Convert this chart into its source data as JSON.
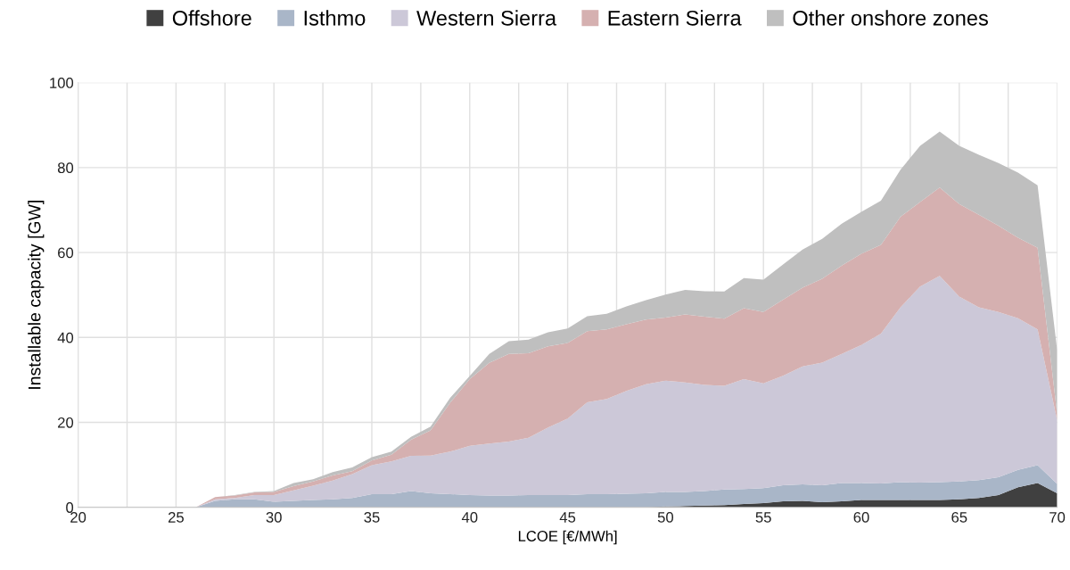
{
  "chart_data": {
    "type": "area",
    "stacked": true,
    "xlabel": "LCOE [€/MWh]",
    "ylabel": "Installable capacity [GW]",
    "x": [
      20,
      21,
      22,
      23,
      24,
      25,
      26,
      27,
      28,
      29,
      30,
      31,
      32,
      33,
      34,
      35,
      36,
      37,
      38,
      39,
      40,
      41,
      42,
      43,
      44,
      45,
      46,
      47,
      48,
      49,
      50,
      51,
      52,
      53,
      54,
      55,
      56,
      57,
      58,
      59,
      60,
      61,
      62,
      63,
      64,
      65,
      66,
      67,
      68,
      69,
      70
    ],
    "series": [
      {
        "name": "Offshore",
        "color": "#404040",
        "values": [
          0,
          0,
          0,
          0,
          0,
          0,
          0,
          0,
          0,
          0,
          0,
          0,
          0,
          0,
          0,
          0,
          0,
          0,
          0,
          0,
          0,
          0,
          0,
          0,
          0,
          0,
          0,
          0,
          0,
          0,
          0.2,
          0.3,
          0.4,
          0.5,
          0.8,
          1.0,
          1.4,
          1.5,
          1.2,
          1.4,
          1.7,
          1.7,
          1.7,
          1.7,
          1.7,
          1.9,
          2.2,
          2.9,
          4.7,
          5.7,
          3.3
        ]
      },
      {
        "name": "Isthmo",
        "color": "#a9b6c8",
        "values": [
          0,
          0,
          0,
          0,
          0,
          0,
          0,
          1.5,
          1.9,
          1.9,
          1.3,
          1.5,
          1.7,
          1.9,
          2.2,
          3.1,
          3.1,
          3.8,
          3.3,
          3.1,
          2.9,
          2.8,
          2.8,
          2.9,
          2.9,
          2.9,
          3.1,
          3.1,
          3.2,
          3.3,
          3.4,
          3.3,
          3.4,
          3.7,
          3.5,
          3.5,
          3.8,
          3.9,
          4.0,
          4.3,
          4.0,
          3.9,
          4.2,
          4.1,
          4.2,
          4.2,
          4.2,
          4.2,
          4.1,
          4.2,
          2.2
        ]
      },
      {
        "name": "Western Sierra",
        "color": "#ccc8d8",
        "values": [
          0,
          0,
          0,
          0,
          0,
          0,
          0,
          0.4,
          0.3,
          1.0,
          1.6,
          2.5,
          3.4,
          4.4,
          5.6,
          6.8,
          7.7,
          8.3,
          8.9,
          10.0,
          11.6,
          12.2,
          12.7,
          13.5,
          15.9,
          18.0,
          21.6,
          22.4,
          24.2,
          25.7,
          26.2,
          25.8,
          25.0,
          24.4,
          25.9,
          24.7,
          25.8,
          27.8,
          28.9,
          30.4,
          32.5,
          35.3,
          41.2,
          46.2,
          48.6,
          43.5,
          40.7,
          38.9,
          35.7,
          32.0,
          15.0
        ]
      },
      {
        "name": "Eastern Sierra",
        "color": "#d5b0b0",
        "values": [
          0,
          0,
          0,
          0,
          0,
          0,
          0,
          0.5,
          0.6,
          0.6,
          0.7,
          1.0,
          1.0,
          1.2,
          0.7,
          1.1,
          1.6,
          3.8,
          5.9,
          11.5,
          15.7,
          19.0,
          20.6,
          19.9,
          19.1,
          17.8,
          16.8,
          16.4,
          15.7,
          15.2,
          14.9,
          16.0,
          16.1,
          15.8,
          16.7,
          16.8,
          17.9,
          18.5,
          19.7,
          20.8,
          21.5,
          20.9,
          21.3,
          19.9,
          20.8,
          21.8,
          21.8,
          20.3,
          19.0,
          19.2,
          1.5
        ]
      },
      {
        "name": "Other onshore zones",
        "color": "#bfbfbf",
        "values": [
          0,
          0,
          0,
          0,
          0,
          0,
          0,
          0,
          0.1,
          0.1,
          0.2,
          0.7,
          0.5,
          0.8,
          0.9,
          0.8,
          0.7,
          0.7,
          0.9,
          1.2,
          0.7,
          2.1,
          3.0,
          3.2,
          3.3,
          3.4,
          3.5,
          3.7,
          4.2,
          4.6,
          5.4,
          5.8,
          6.0,
          6.4,
          7.1,
          7.6,
          8.3,
          9.0,
          9.4,
          9.9,
          9.9,
          10.4,
          11.1,
          13.2,
          13.2,
          13.7,
          14.1,
          14.8,
          15.3,
          14.7,
          15.0
        ]
      }
    ],
    "xlim": [
      20,
      70
    ],
    "xticks": [
      20,
      {
        "value": 22.5,
        "label": null
      },
      25,
      {
        "value": 27.5,
        "label": null
      },
      30,
      {
        "value": 32.5,
        "label": null
      },
      35,
      {
        "value": 37.5,
        "label": null
      },
      40,
      {
        "value": 42.5,
        "label": null
      },
      45,
      {
        "value": 47.5,
        "label": null
      },
      50,
      {
        "value": 52.5,
        "label": null
      },
      55,
      {
        "value": 57.5,
        "label": null
      },
      60,
      {
        "value": 62.5,
        "label": null
      },
      65,
      {
        "value": 67.5,
        "label": null
      },
      70
    ],
    "ylim": [
      0,
      100
    ],
    "yticks": [
      0,
      20,
      40,
      60,
      80,
      100
    ],
    "grid": true,
    "legend": "top"
  }
}
